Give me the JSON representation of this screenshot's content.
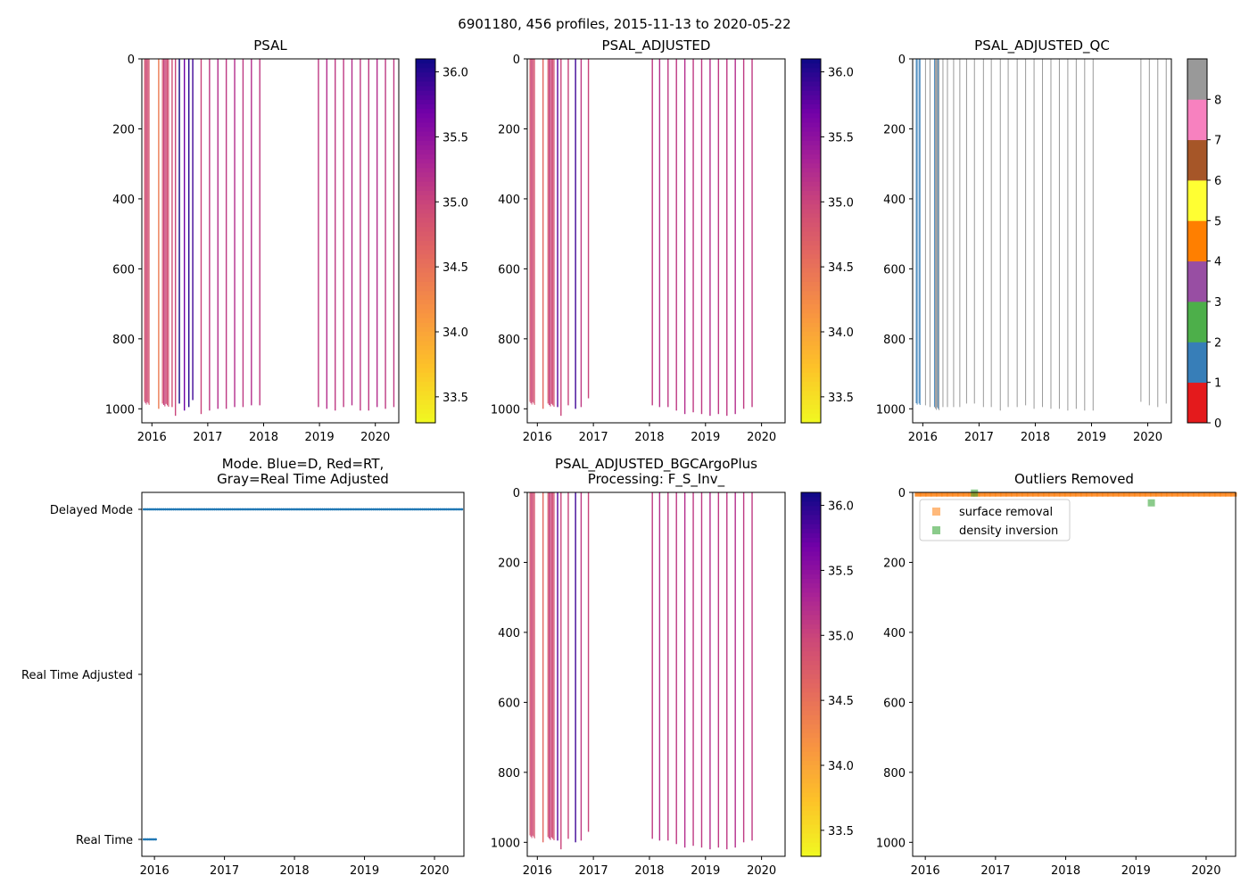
{
  "figure": {
    "suptitle": "6901180, 456 profiles, 2015-11-13 to 2020-05-22"
  },
  "colors": {
    "plasma_low": "#f0f921",
    "plasma_high": "#0d0887",
    "delayed_mode": "#1f77b4",
    "surface_removal": "#ff7f0e",
    "density_inversion": "#2ca02c",
    "qc_palette": [
      "#e41a1c",
      "#377eb8",
      "#4daf4a",
      "#984ea3",
      "#ff7f00",
      "#ffff33",
      "#a65628",
      "#f781bf",
      "#999999"
    ]
  },
  "chart_data": [
    {
      "id": "psal",
      "type": "heatmap",
      "title": "PSAL",
      "xlabel": "",
      "ylabel": "",
      "xlim": [
        2015.82,
        2020.42
      ],
      "ylim": [
        1040,
        0
      ],
      "xticks": [
        "2016",
        "2017",
        "2018",
        "2019",
        "2020"
      ],
      "yticks": [
        "0",
        "200",
        "400",
        "600",
        "800",
        "1000"
      ],
      "colorbar": {
        "range": [
          33.3,
          36.1
        ],
        "ticks": [
          "33.5",
          "34.0",
          "34.5",
          "35.0",
          "35.5",
          "36.0"
        ]
      },
      "dense_bands": [
        {
          "x0": 2015.86,
          "x1": 2015.96,
          "value": 34.8,
          "bottom": 985
        },
        {
          "x0": 2016.18,
          "x1": 2016.31,
          "value": 34.85,
          "bottom": 990
        }
      ],
      "profiles": [
        {
          "x": 2016.12,
          "bottom": 1000,
          "value": 34.4
        },
        {
          "x": 2016.36,
          "bottom": 995,
          "value": 34.9
        },
        {
          "x": 2016.42,
          "bottom": 1020,
          "value": 35.0
        },
        {
          "x": 2016.49,
          "bottom": 985,
          "value": 36.1
        },
        {
          "x": 2016.58,
          "bottom": 1005,
          "value": 35.7
        },
        {
          "x": 2016.66,
          "bottom": 995,
          "value": 36.0
        },
        {
          "x": 2016.73,
          "bottom": 975,
          "value": 35.9
        },
        {
          "x": 2016.88,
          "bottom": 1015,
          "value": 35.0
        },
        {
          "x": 2017.03,
          "bottom": 1005,
          "value": 35.1
        },
        {
          "x": 2017.18,
          "bottom": 1000,
          "value": 35.2
        },
        {
          "x": 2017.33,
          "bottom": 1000,
          "value": 35.1
        },
        {
          "x": 2017.48,
          "bottom": 995,
          "value": 35.2
        },
        {
          "x": 2017.63,
          "bottom": 995,
          "value": 35.1
        },
        {
          "x": 2017.78,
          "bottom": 990,
          "value": 35.2
        },
        {
          "x": 2017.93,
          "bottom": 990,
          "value": 35.1
        },
        {
          "x": 2018.98,
          "bottom": 995,
          "value": 35.1
        },
        {
          "x": 2019.13,
          "bottom": 1000,
          "value": 35.2
        },
        {
          "x": 2019.28,
          "bottom": 1005,
          "value": 35.1
        },
        {
          "x": 2019.43,
          "bottom": 995,
          "value": 35.1
        },
        {
          "x": 2019.58,
          "bottom": 990,
          "value": 35.2
        },
        {
          "x": 2019.73,
          "bottom": 1005,
          "value": 35.1
        },
        {
          "x": 2019.88,
          "bottom": 1005,
          "value": 35.1
        },
        {
          "x": 2020.03,
          "bottom": 995,
          "value": 35.2
        },
        {
          "x": 2020.18,
          "bottom": 1000,
          "value": 35.1
        },
        {
          "x": 2020.33,
          "bottom": 995,
          "value": 35.1
        }
      ]
    },
    {
      "id": "psal_adjusted",
      "type": "heatmap",
      "title": "PSAL_ADJUSTED",
      "xlabel": "",
      "ylabel": "",
      "xlim": [
        2015.82,
        2020.42
      ],
      "ylim": [
        1040,
        0
      ],
      "xticks": [
        "2016",
        "2017",
        "2018",
        "2019",
        "2020"
      ],
      "yticks": [
        "0",
        "200",
        "400",
        "600",
        "800",
        "1000"
      ],
      "colorbar": {
        "range": [
          33.3,
          36.1
        ],
        "ticks": [
          "33.5",
          "34.0",
          "34.5",
          "35.0",
          "35.5",
          "36.0"
        ]
      },
      "dense_bands": [
        {
          "x0": 2015.86,
          "x1": 2015.96,
          "value": 34.8,
          "bottom": 985
        },
        {
          "x0": 2016.18,
          "x1": 2016.31,
          "value": 34.85,
          "bottom": 990
        }
      ],
      "profiles": [
        {
          "x": 2016.1,
          "bottom": 1000,
          "value": 34.6
        },
        {
          "x": 2016.36,
          "bottom": 995,
          "value": 35.8
        },
        {
          "x": 2016.42,
          "bottom": 1020,
          "value": 35.0
        },
        {
          "x": 2016.55,
          "bottom": 990,
          "value": 35.0
        },
        {
          "x": 2016.68,
          "bottom": 1000,
          "value": 35.9
        },
        {
          "x": 2016.78,
          "bottom": 995,
          "value": 35.1
        },
        {
          "x": 2016.91,
          "bottom": 970,
          "value": 35.0
        },
        {
          "x": 2018.05,
          "bottom": 990,
          "value": 35.1
        },
        {
          "x": 2018.18,
          "bottom": 995,
          "value": 35.2
        },
        {
          "x": 2018.33,
          "bottom": 995,
          "value": 35.1
        },
        {
          "x": 2018.48,
          "bottom": 1005,
          "value": 35.1
        },
        {
          "x": 2018.63,
          "bottom": 1015,
          "value": 35.2
        },
        {
          "x": 2018.78,
          "bottom": 1010,
          "value": 35.1
        },
        {
          "x": 2018.93,
          "bottom": 1015,
          "value": 35.1
        },
        {
          "x": 2019.08,
          "bottom": 1020,
          "value": 35.2
        },
        {
          "x": 2019.23,
          "bottom": 1015,
          "value": 35.1
        },
        {
          "x": 2019.38,
          "bottom": 1020,
          "value": 35.1
        },
        {
          "x": 2019.53,
          "bottom": 1015,
          "value": 35.2
        },
        {
          "x": 2019.68,
          "bottom": 1000,
          "value": 35.1
        },
        {
          "x": 2019.83,
          "bottom": 995,
          "value": 35.1
        }
      ]
    },
    {
      "id": "psal_adjusted_qc",
      "type": "heatmap",
      "title": "PSAL_ADJUSTED_QC",
      "xlabel": "",
      "ylabel": "",
      "xlim": [
        2015.82,
        2020.42
      ],
      "ylim": [
        1040,
        0
      ],
      "xticks": [
        "2016",
        "2017",
        "2018",
        "2019",
        "2020"
      ],
      "yticks": [
        "0",
        "200",
        "400",
        "600",
        "800",
        "1000"
      ],
      "colorbar": {
        "categories": [
          "0",
          "1",
          "2",
          "3",
          "4",
          "5",
          "6",
          "7",
          "8"
        ],
        "ticks": [
          "0",
          "1",
          "2",
          "3",
          "4",
          "5",
          "6",
          "7",
          "8"
        ]
      },
      "dense_bands": [
        {
          "x0": 2015.86,
          "x1": 2015.96,
          "qc": 1,
          "bottom": 985
        },
        {
          "x0": 2016.2,
          "x1": 2016.3,
          "qc": 8,
          "bottom": 1000
        }
      ],
      "profiles": [
        {
          "x": 2016.05,
          "bottom": 990,
          "qc": 8
        },
        {
          "x": 2016.13,
          "bottom": 995,
          "qc": 8
        },
        {
          "x": 2016.36,
          "bottom": 995,
          "qc": 8
        },
        {
          "x": 2016.44,
          "bottom": 995,
          "qc": 8
        },
        {
          "x": 2016.55,
          "bottom": 995,
          "qc": 8
        },
        {
          "x": 2016.66,
          "bottom": 995,
          "qc": 8
        },
        {
          "x": 2016.78,
          "bottom": 985,
          "qc": 8
        },
        {
          "x": 2016.92,
          "bottom": 985,
          "qc": 8
        },
        {
          "x": 2017.08,
          "bottom": 995,
          "qc": 8
        },
        {
          "x": 2017.22,
          "bottom": 995,
          "qc": 8
        },
        {
          "x": 2017.38,
          "bottom": 1005,
          "qc": 8
        },
        {
          "x": 2017.52,
          "bottom": 995,
          "qc": 8
        },
        {
          "x": 2017.68,
          "bottom": 995,
          "qc": 8
        },
        {
          "x": 2017.83,
          "bottom": 990,
          "qc": 8
        },
        {
          "x": 2017.98,
          "bottom": 1000,
          "qc": 8
        },
        {
          "x": 2018.13,
          "bottom": 995,
          "qc": 8
        },
        {
          "x": 2018.28,
          "bottom": 1000,
          "qc": 8
        },
        {
          "x": 2018.43,
          "bottom": 1000,
          "qc": 8
        },
        {
          "x": 2018.58,
          "bottom": 1005,
          "qc": 8
        },
        {
          "x": 2018.73,
          "bottom": 1000,
          "qc": 8
        },
        {
          "x": 2018.88,
          "bottom": 1005,
          "qc": 8
        },
        {
          "x": 2019.03,
          "bottom": 1005,
          "qc": 8
        },
        {
          "x": 2019.88,
          "bottom": 980,
          "qc": 8
        },
        {
          "x": 2020.03,
          "bottom": 990,
          "qc": 8
        },
        {
          "x": 2020.18,
          "bottom": 995,
          "qc": 8
        },
        {
          "x": 2020.33,
          "bottom": 985,
          "qc": 8
        }
      ]
    },
    {
      "id": "mode",
      "type": "scatter",
      "title": "Mode. Blue=D, Red=RT,\nGray=Real Time Adjusted",
      "xlabel": "",
      "ylabel": "",
      "xlim": [
        2015.82,
        2020.42
      ],
      "xticks": [
        "2016",
        "2017",
        "2018",
        "2019",
        "2020"
      ],
      "yticks": [
        "Delayed Mode",
        "Real Time Adjusted",
        "Real Time"
      ],
      "series": [
        {
          "name": "Delayed Mode",
          "level": "Delayed Mode",
          "x_range": [
            2015.85,
            2020.4
          ]
        },
        {
          "name": "Real Time",
          "level": "Real Time",
          "x_range": [
            2015.85,
            2016.02
          ]
        }
      ]
    },
    {
      "id": "bgc",
      "type": "heatmap",
      "title": "PSAL_ADJUSTED_BGCArgoPlus\nProcessing: F_S_Inv_",
      "xlabel": "",
      "ylabel": "",
      "xlim": [
        2015.82,
        2020.42
      ],
      "ylim": [
        1040,
        0
      ],
      "xticks": [
        "2016",
        "2017",
        "2018",
        "2019",
        "2020"
      ],
      "yticks": [
        "0",
        "200",
        "400",
        "600",
        "800",
        "1000"
      ],
      "colorbar": {
        "range": [
          33.3,
          36.1
        ],
        "ticks": [
          "33.5",
          "34.0",
          "34.5",
          "35.0",
          "35.5",
          "36.0"
        ]
      },
      "dense_bands": [
        {
          "x0": 2015.86,
          "x1": 2015.96,
          "value": 34.8,
          "bottom": 985
        },
        {
          "x0": 2016.18,
          "x1": 2016.31,
          "value": 34.85,
          "bottom": 990
        }
      ],
      "profiles": [
        {
          "x": 2016.1,
          "bottom": 1000,
          "value": 34.6
        },
        {
          "x": 2016.36,
          "bottom": 995,
          "value": 35.8
        },
        {
          "x": 2016.42,
          "bottom": 1020,
          "value": 35.0
        },
        {
          "x": 2016.55,
          "bottom": 990,
          "value": 35.0
        },
        {
          "x": 2016.68,
          "bottom": 1000,
          "value": 35.9
        },
        {
          "x": 2016.78,
          "bottom": 995,
          "value": 35.1
        },
        {
          "x": 2016.91,
          "bottom": 970,
          "value": 35.0
        },
        {
          "x": 2018.05,
          "bottom": 990,
          "value": 35.1
        },
        {
          "x": 2018.18,
          "bottom": 995,
          "value": 35.2
        },
        {
          "x": 2018.33,
          "bottom": 995,
          "value": 35.1
        },
        {
          "x": 2018.48,
          "bottom": 1005,
          "value": 35.1
        },
        {
          "x": 2018.63,
          "bottom": 1015,
          "value": 35.2
        },
        {
          "x": 2018.78,
          "bottom": 1010,
          "value": 35.1
        },
        {
          "x": 2018.93,
          "bottom": 1015,
          "value": 35.1
        },
        {
          "x": 2019.08,
          "bottom": 1020,
          "value": 35.2
        },
        {
          "x": 2019.23,
          "bottom": 1015,
          "value": 35.1
        },
        {
          "x": 2019.38,
          "bottom": 1020,
          "value": 35.1
        },
        {
          "x": 2019.53,
          "bottom": 1015,
          "value": 35.2
        },
        {
          "x": 2019.68,
          "bottom": 1000,
          "value": 35.1
        },
        {
          "x": 2019.83,
          "bottom": 995,
          "value": 35.1
        }
      ]
    },
    {
      "id": "outliers",
      "type": "scatter",
      "title": "Outliers Removed",
      "xlabel": "",
      "ylabel": "",
      "xlim": [
        2015.82,
        2020.42
      ],
      "ylim": [
        1040,
        0
      ],
      "xticks": [
        "2016",
        "2017",
        "2018",
        "2019",
        "2020"
      ],
      "yticks": [
        "0",
        "200",
        "400",
        "600",
        "800",
        "1000"
      ],
      "legend": {
        "position": "upper-left",
        "entries": [
          "surface removal",
          "density inversion"
        ]
      },
      "series": [
        {
          "name": "surface removal",
          "pressure_range": [
            0,
            12
          ],
          "x_range": [
            2015.85,
            2020.42
          ]
        },
        {
          "name": "density inversion",
          "points": [
            {
              "x": 2016.7,
              "y": 2
            },
            {
              "x": 2019.22,
              "y": 30
            }
          ]
        }
      ]
    }
  ]
}
